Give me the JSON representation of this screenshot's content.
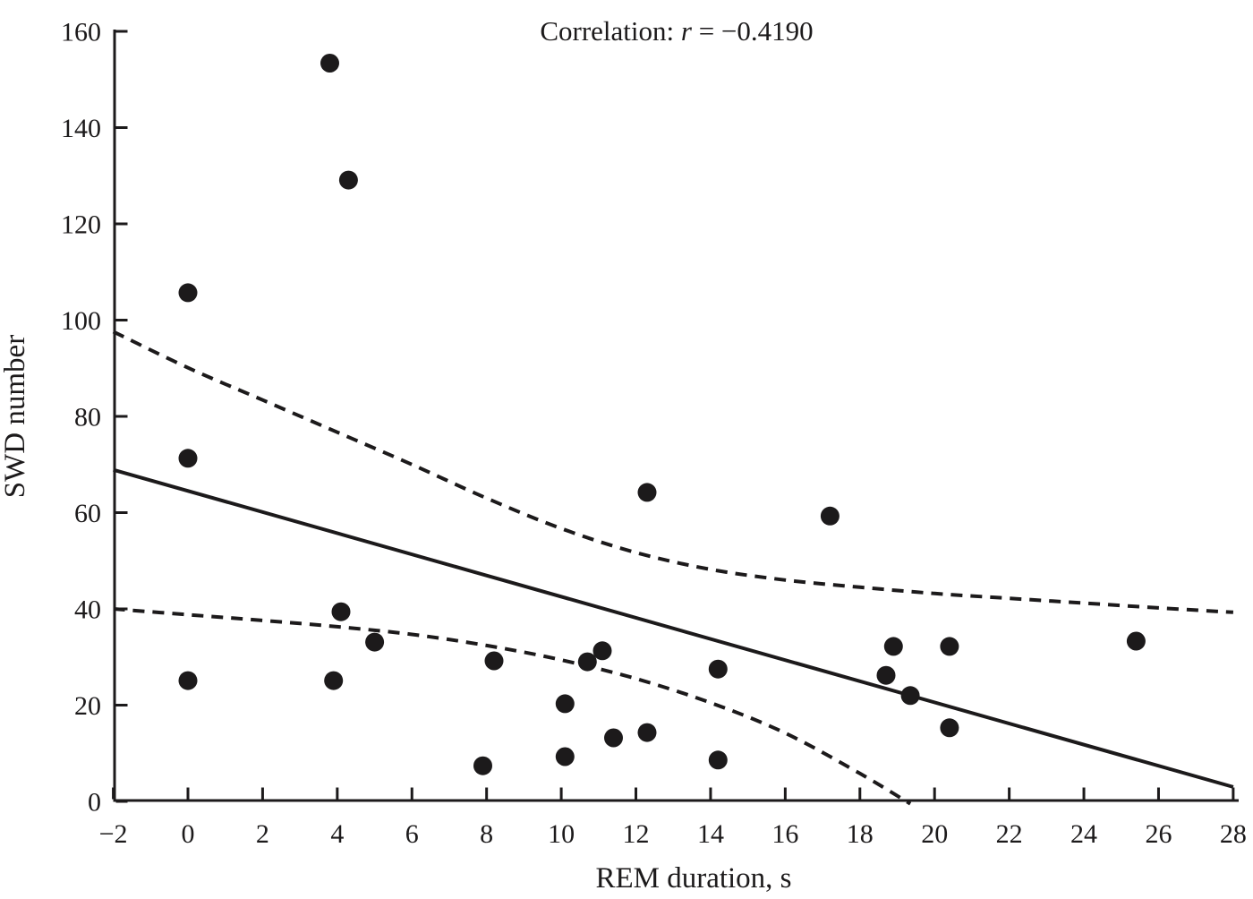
{
  "title": {
    "prefix": "Correlation: ",
    "r_symbol": "r",
    "equals_value": " = −0.4190"
  },
  "axes": {
    "x": {
      "label": "REM duration, s",
      "min": -2,
      "max": 28,
      "tick_values": [
        -2,
        0,
        2,
        4,
        6,
        8,
        10,
        12,
        14,
        16,
        18,
        20,
        22,
        24,
        26,
        28
      ],
      "tick_labels": [
        "−2",
        "0",
        "2",
        "4",
        "6",
        "8",
        "10",
        "12",
        "14",
        "16",
        "18",
        "20",
        "22",
        "24",
        "26",
        "28"
      ]
    },
    "y": {
      "label": "SWD number",
      "min": 0,
      "max": 160,
      "tick_values": [
        0,
        20,
        40,
        60,
        80,
        100,
        120,
        140,
        160
      ],
      "tick_labels": [
        "0",
        "20",
        "40",
        "60",
        "80",
        "100",
        "120",
        "140",
        "160"
      ]
    }
  },
  "chart_data": {
    "type": "scatter",
    "title": "Correlation: r = −0.4190",
    "xlabel": "REM duration, s",
    "ylabel": "SWD number",
    "xlim": [
      -2,
      28
    ],
    "ylim": [
      0,
      160
    ],
    "grid": false,
    "correlation_r": -0.419,
    "points": [
      [
        3.8,
        153.4
      ],
      [
        4.3,
        129.1
      ],
      [
        0,
        105.7
      ],
      [
        0,
        71.3
      ],
      [
        12.3,
        64.2
      ],
      [
        17.2,
        59.3
      ],
      [
        4.1,
        39.4
      ],
      [
        5.0,
        33.1
      ],
      [
        11.1,
        31.3
      ],
      [
        25.4,
        33.3
      ],
      [
        18.9,
        32.2
      ],
      [
        20.4,
        32.2
      ],
      [
        8.2,
        29.2
      ],
      [
        10.7,
        29.0
      ],
      [
        14.2,
        27.5
      ],
      [
        18.7,
        26.2
      ],
      [
        0,
        25.1
      ],
      [
        3.9,
        25.1
      ],
      [
        19.35,
        22.0
      ],
      [
        10.1,
        20.3
      ],
      [
        20.4,
        15.3
      ],
      [
        12.3,
        14.3
      ],
      [
        11.4,
        13.2
      ],
      [
        10.1,
        9.3
      ],
      [
        14.2,
        8.6
      ],
      [
        7.9,
        7.4
      ]
    ],
    "regression_line": {
      "x1": -2,
      "y1": 68.9,
      "x2": 28,
      "y2": 3.0
    },
    "upper_ci_curve": [
      [
        -2,
        97.6
      ],
      [
        0,
        90.1
      ],
      [
        2,
        83.4
      ],
      [
        4,
        76.7
      ],
      [
        6,
        70.0
      ],
      [
        8,
        63.0
      ],
      [
        10,
        56.7
      ],
      [
        12,
        51.7
      ],
      [
        14,
        48.2
      ],
      [
        16,
        46.0
      ],
      [
        18,
        44.5
      ],
      [
        20,
        43.2
      ],
      [
        22,
        42.2
      ],
      [
        24,
        41.2
      ],
      [
        26,
        40.2
      ],
      [
        28,
        39.3
      ]
    ],
    "lower_ci_curve": [
      [
        -2,
        40.0
      ],
      [
        0,
        38.8
      ],
      [
        2,
        37.6
      ],
      [
        4,
        36.3
      ],
      [
        6,
        34.7
      ],
      [
        8,
        32.4
      ],
      [
        10,
        29.4
      ],
      [
        12,
        25.5
      ],
      [
        14,
        20.5
      ],
      [
        16,
        14.2
      ],
      [
        18,
        5.8
      ],
      [
        19.35,
        -0.5
      ]
    ],
    "colors": {
      "ink": "#1c1a1b",
      "background": "#ffffff"
    },
    "marker": {
      "shape": "circle",
      "radius_px": 10.5
    },
    "line_styles": {
      "regression": "solid",
      "confidence_band": "dashed"
    }
  }
}
